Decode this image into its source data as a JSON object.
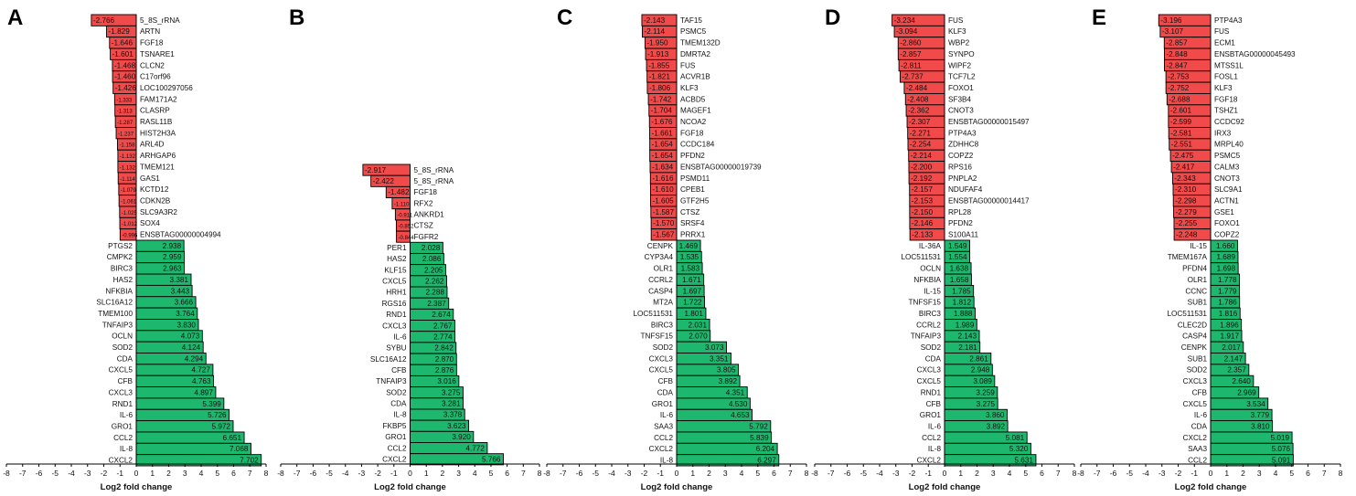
{
  "x_axis_label": "Log2 fold change",
  "colors": {
    "up": "#1db86d",
    "down": "#f04a4a",
    "stroke": "#000000",
    "axis": "#000000"
  },
  "chart_data": [
    {
      "type": "bar",
      "orientation": "horizontal",
      "panel": "A",
      "xlabel": "Log2 fold change",
      "xlim": [
        -8,
        8
      ],
      "xticks": [
        -8,
        -7,
        -6,
        -5,
        -4,
        -3,
        -2,
        -1,
        0,
        1,
        2,
        3,
        4,
        5,
        6,
        7,
        8
      ],
      "down": {
        "labels": [
          "5_8S_rRNA",
          "ARTN",
          "FGF18",
          "TSNARE1",
          "CLCN2",
          "C17orf96",
          "LOC100297056",
          "FAM171A2",
          "CLASRP",
          "RASL11B",
          "HIST2H3A",
          "ARL4D",
          "ARHGAP6",
          "TMEM121",
          "GAS1",
          "KCTD12",
          "CDKN2B",
          "SLC9A3R2",
          "SOX4",
          "ENSBTAG00000004994"
        ],
        "values": [
          -2.766,
          -1.829,
          -1.646,
          -1.601,
          -1.468,
          -1.46,
          -1.426,
          -1.333,
          -1.313,
          -1.287,
          -1.237,
          -1.158,
          -1.132,
          -1.132,
          -1.114,
          -1.079,
          -1.061,
          -1.025,
          -1.012,
          -0.996
        ]
      },
      "up": {
        "labels": [
          "PTGS2",
          "CMPK2",
          "BIRC3",
          "HAS2",
          "NFKBIA",
          "SLC16A12",
          "TMEM100",
          "TNFAIP3",
          "OCLN",
          "SOD2",
          "CDA",
          "CXCL5",
          "CFB",
          "CXCL3",
          "RND1",
          "IL-6",
          "GRO1",
          "CCL2",
          "IL-8",
          "CXCL2"
        ],
        "values": [
          2.938,
          2.959,
          2.963,
          3.381,
          3.443,
          3.666,
          3.764,
          3.83,
          4.073,
          4.124,
          4.294,
          4.727,
          4.763,
          4.897,
          5.399,
          5.726,
          5.972,
          6.651,
          7.068,
          7.702
        ]
      }
    },
    {
      "type": "bar",
      "orientation": "horizontal",
      "panel": "B",
      "xlabel": "Log2 fold change",
      "xlim": [
        -8,
        8
      ],
      "xticks": [
        -8,
        -7,
        -6,
        -5,
        -4,
        -3,
        -2,
        -1,
        0,
        1,
        2,
        3,
        4,
        5,
        6,
        7,
        8
      ],
      "down": {
        "labels": [
          "5_8S_rRNA",
          "5_8S_rRNA",
          "FGF18",
          "RFX2",
          "ANKRD1",
          "CTSZ",
          "FGFR2"
        ],
        "values": [
          -2.917,
          -2.422,
          -1.482,
          -1.11,
          -0.911,
          -0.852,
          -0.844
        ]
      },
      "up": {
        "labels": [
          "PER1",
          "HAS2",
          "KLF15",
          "CXCL5",
          "HRH1",
          "RGS16",
          "RND1",
          "CXCL3",
          "IL-6",
          "SYBU",
          "SLC16A12",
          "CFB",
          "TNFAIP3",
          "SOD2",
          "CDA",
          "IL-8",
          "FKBP5",
          "GRO1",
          "CCL2",
          "CXCL2"
        ],
        "values": [
          2.028,
          2.086,
          2.205,
          2.262,
          2.288,
          2.387,
          2.674,
          2.767,
          2.774,
          2.842,
          2.87,
          2.876,
          3.016,
          3.275,
          3.281,
          3.378,
          3.623,
          3.92,
          4.772,
          5.766
        ]
      }
    },
    {
      "type": "bar",
      "orientation": "horizontal",
      "panel": "C",
      "xlabel": "Log2 fold change",
      "xlim": [
        -8,
        8
      ],
      "xticks": [
        -8,
        -7,
        -6,
        -5,
        -4,
        -3,
        -2,
        -1,
        0,
        1,
        2,
        3,
        4,
        5,
        6,
        7,
        8
      ],
      "down": {
        "labels": [
          "TAF15",
          "PSMC5",
          "TMEM132D",
          "DMRTA2",
          "FUS",
          "ACVR1B",
          "KLF3",
          "ACBD5",
          "MAGEF1",
          "NCOA2",
          "FGF18",
          "CCDC184",
          "PFDN2",
          "ENSBTAG00000019739",
          "PSMD11",
          "CPEB1",
          "GTF2H5",
          "CTSZ",
          "SRSF4",
          "PRRX1"
        ],
        "values": [
          -2.143,
          -2.114,
          -1.95,
          -1.913,
          -1.855,
          -1.821,
          -1.806,
          -1.742,
          -1.704,
          -1.676,
          -1.661,
          -1.654,
          -1.654,
          -1.634,
          -1.616,
          -1.61,
          -1.605,
          -1.587,
          -1.57,
          -1.567
        ]
      },
      "up": {
        "labels": [
          "CENPK",
          "CYP3A4",
          "OLR1",
          "CCRL2",
          "CASP4",
          "MT2A",
          "LOC511531",
          "BIRC3",
          "TNFSF15",
          "SOD2",
          "CXCL3",
          "CXCL5",
          "CFB",
          "CDA",
          "GRO1",
          "IL-6",
          "SAA3",
          "CCL2",
          "CXCL2",
          "IL-8"
        ],
        "values": [
          1.469,
          1.535,
          1.583,
          1.671,
          1.697,
          1.722,
          1.801,
          2.031,
          2.07,
          3.073,
          3.351,
          3.805,
          3.892,
          4.351,
          4.53,
          4.653,
          5.792,
          5.839,
          6.204,
          6.297
        ]
      }
    },
    {
      "type": "bar",
      "orientation": "horizontal",
      "panel": "D",
      "xlabel": "Log2 fold change",
      "xlim": [
        -8,
        8
      ],
      "xticks": [
        -8,
        -7,
        -6,
        -5,
        -4,
        -3,
        -2,
        -1,
        0,
        1,
        2,
        3,
        4,
        5,
        6,
        7,
        8
      ],
      "down": {
        "labels": [
          "FUS",
          "KLF3",
          "WBP2",
          "SYNPO",
          "WIPF2",
          "TCF7L2",
          "FOXO1",
          "SF3B4",
          "CNOT3",
          "ENSBTAG00000015497",
          "PTP4A3",
          "ZDHHC8",
          "COPZ2",
          "RPS16",
          "PNPLA2",
          "NDUFAF4",
          "ENSBTAG00000014417",
          "RPL28",
          "PFDN2",
          "S100A11"
        ],
        "values": [
          -3.234,
          -3.094,
          -2.86,
          -2.857,
          -2.811,
          -2.737,
          -2.484,
          -2.408,
          -2.362,
          -2.307,
          -2.271,
          -2.254,
          -2.214,
          -2.2,
          -2.192,
          -2.157,
          -2.153,
          -2.15,
          -2.146,
          -2.133
        ]
      },
      "up": {
        "labels": [
          "IL-36A",
          "LOC511531",
          "OCLN",
          "NFKBIA",
          "IL-15",
          "TNFSF15",
          "BIRC3",
          "CCRL2",
          "TNFAIP3",
          "SOD2",
          "CDA",
          "CXCL3",
          "CXCL5",
          "RND1",
          "CFB",
          "GRO1",
          "IL-6",
          "CCL2",
          "IL-8",
          "CXCL2"
        ],
        "values": [
          1.549,
          1.554,
          1.638,
          1.658,
          1.785,
          1.812,
          1.888,
          1.989,
          2.143,
          2.181,
          2.861,
          2.948,
          3.089,
          3.259,
          3.275,
          3.86,
          3.892,
          5.081,
          5.32,
          5.631
        ]
      }
    },
    {
      "type": "bar",
      "orientation": "horizontal",
      "panel": "E",
      "xlabel": "Log2 fold change",
      "xlim": [
        -8,
        8
      ],
      "xticks": [
        -8,
        -7,
        -6,
        -5,
        -4,
        -3,
        -2,
        -1,
        0,
        1,
        2,
        3,
        4,
        5,
        6,
        7,
        8
      ],
      "down": {
        "labels": [
          "PTP4A3",
          "FUS",
          "ECM1",
          "ENSBTAG00000045493",
          "MTSS1L",
          "FOSL1",
          "KLF3",
          "FGF18",
          "TSHZ1",
          "CCDC92",
          "IRX3",
          "MRPL40",
          "PSMC5",
          "CALM3",
          "CNOT3",
          "SLC9A1",
          "ACTN1",
          "GSE1",
          "FOXO1",
          "COPZ2"
        ],
        "values": [
          -3.196,
          -3.107,
          -2.857,
          -2.848,
          -2.847,
          -2.753,
          -2.752,
          -2.688,
          -2.601,
          -2.599,
          -2.581,
          -2.551,
          -2.475,
          -2.417,
          -2.343,
          -2.31,
          -2.298,
          -2.279,
          -2.255,
          -2.248
        ]
      },
      "up": {
        "labels": [
          "IL-15",
          "TMEM167A",
          "PFDN4",
          "OLR1",
          "CCNC",
          "SUB1",
          "LOC511531",
          "CLEC2D",
          "CASP4",
          "CENPK",
          "SUB1",
          "SOD2",
          "CXCL3",
          "CFB",
          "CXCL5",
          "IL-6",
          "CDA",
          "CXCL2",
          "SAA3",
          "CCL2"
        ],
        "values": [
          1.66,
          1.689,
          1.698,
          1.778,
          1.779,
          1.786,
          1.816,
          1.896,
          1.917,
          2.017,
          2.147,
          2.357,
          2.64,
          2.969,
          3.534,
          3.779,
          3.81,
          5.019,
          5.076,
          5.091
        ]
      }
    }
  ]
}
